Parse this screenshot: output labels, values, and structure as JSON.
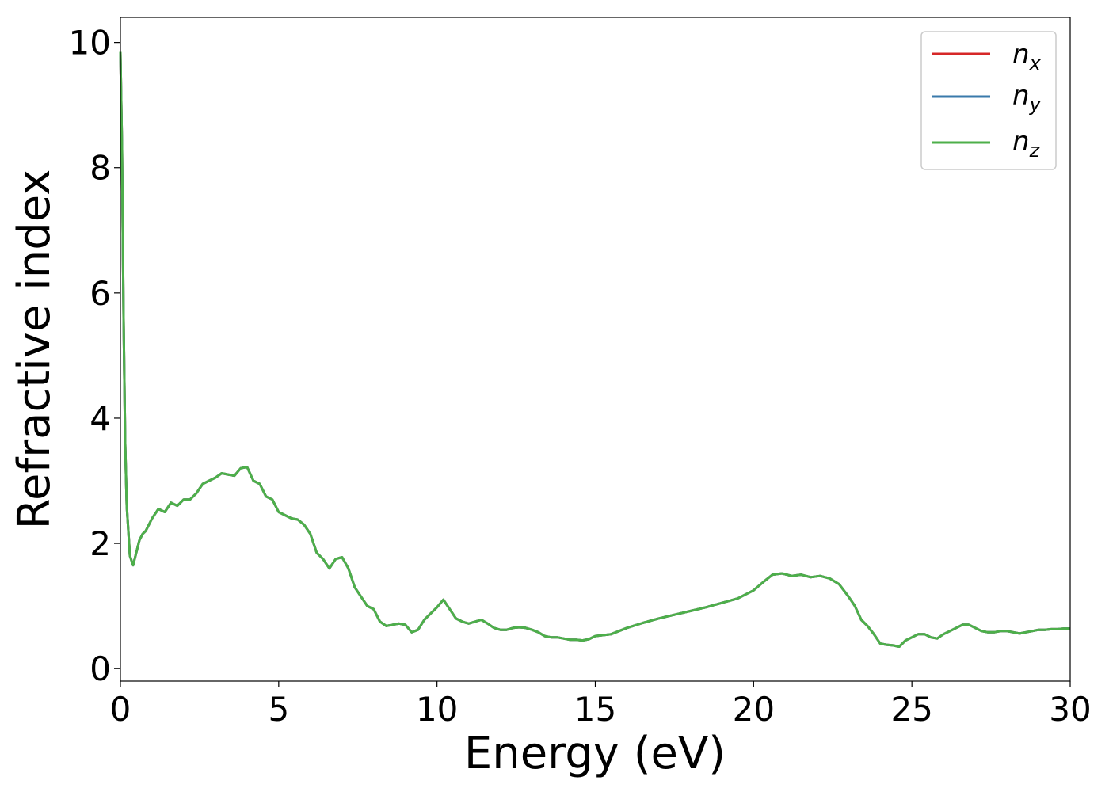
{
  "chart_data": {
    "type": "line",
    "xlabel": "Energy (eV)",
    "ylabel": "Refractive index",
    "xlim": [
      0,
      30
    ],
    "ylim": [
      -0.2,
      10.4
    ],
    "xticks": [
      0,
      5,
      10,
      15,
      20,
      25,
      30
    ],
    "yticks": [
      0,
      2,
      4,
      6,
      8,
      10
    ],
    "xtick_labels": [
      "0",
      "5",
      "10",
      "15",
      "20",
      "25",
      "30"
    ],
    "ytick_labels": [
      "0",
      "2",
      "4",
      "6",
      "8",
      "10"
    ],
    "grid": false,
    "legend_position": "top-right",
    "x": [
      0.0,
      0.05,
      0.1,
      0.15,
      0.2,
      0.3,
      0.4,
      0.5,
      0.6,
      0.7,
      0.8,
      1.0,
      1.2,
      1.4,
      1.6,
      1.8,
      2.0,
      2.2,
      2.4,
      2.6,
      2.8,
      3.0,
      3.2,
      3.4,
      3.6,
      3.8,
      4.0,
      4.2,
      4.4,
      4.6,
      4.8,
      5.0,
      5.2,
      5.4,
      5.6,
      5.8,
      6.0,
      6.2,
      6.4,
      6.6,
      6.8,
      7.0,
      7.2,
      7.4,
      7.6,
      7.8,
      8.0,
      8.2,
      8.4,
      8.6,
      8.8,
      9.0,
      9.2,
      9.4,
      9.6,
      9.8,
      10.0,
      10.2,
      10.4,
      10.6,
      10.8,
      11.0,
      11.2,
      11.4,
      11.6,
      11.8,
      12.0,
      12.2,
      12.4,
      12.6,
      12.8,
      13.0,
      13.2,
      13.4,
      13.6,
      13.8,
      14.0,
      14.2,
      14.4,
      14.6,
      14.8,
      15.0,
      15.5,
      16.0,
      16.5,
      17.0,
      17.5,
      18.0,
      18.5,
      19.0,
      19.5,
      20.0,
      20.3,
      20.6,
      20.9,
      21.2,
      21.5,
      21.8,
      22.1,
      22.4,
      22.7,
      23.0,
      23.2,
      23.4,
      23.6,
      23.8,
      24.0,
      24.2,
      24.4,
      24.6,
      24.8,
      25.0,
      25.2,
      25.4,
      25.6,
      25.8,
      26.0,
      26.2,
      26.4,
      26.6,
      26.8,
      27.0,
      27.2,
      27.4,
      27.6,
      27.8,
      28.0,
      28.2,
      28.4,
      28.6,
      28.8,
      29.0,
      29.2,
      29.4,
      29.6,
      29.8,
      30.0
    ],
    "series": [
      {
        "name": "n_x",
        "color": "#d62728",
        "values": [
          9.85,
          8.3,
          5.6,
          3.6,
          2.6,
          1.8,
          1.65,
          1.85,
          2.05,
          2.15,
          2.2,
          2.4,
          2.55,
          2.5,
          2.65,
          2.6,
          2.7,
          2.7,
          2.8,
          2.95,
          3.0,
          3.05,
          3.12,
          3.1,
          3.08,
          3.2,
          3.22,
          3.0,
          2.95,
          2.75,
          2.7,
          2.5,
          2.45,
          2.4,
          2.38,
          2.3,
          2.15,
          1.85,
          1.75,
          1.6,
          1.75,
          1.78,
          1.6,
          1.3,
          1.15,
          1.0,
          0.95,
          0.75,
          0.68,
          0.7,
          0.72,
          0.7,
          0.58,
          0.62,
          0.78,
          0.88,
          0.98,
          1.1,
          0.95,
          0.8,
          0.75,
          0.72,
          0.75,
          0.78,
          0.72,
          0.65,
          0.62,
          0.62,
          0.65,
          0.66,
          0.65,
          0.62,
          0.58,
          0.52,
          0.5,
          0.5,
          0.48,
          0.46,
          0.46,
          0.45,
          0.47,
          0.52,
          0.55,
          0.65,
          0.73,
          0.8,
          0.86,
          0.92,
          0.98,
          1.05,
          1.12,
          1.25,
          1.38,
          1.5,
          1.52,
          1.48,
          1.5,
          1.46,
          1.48,
          1.44,
          1.35,
          1.15,
          1.0,
          0.78,
          0.68,
          0.55,
          0.4,
          0.38,
          0.37,
          0.35,
          0.45,
          0.5,
          0.55,
          0.55,
          0.5,
          0.48,
          0.55,
          0.6,
          0.65,
          0.7,
          0.7,
          0.65,
          0.6,
          0.58,
          0.58,
          0.6,
          0.6,
          0.58,
          0.56,
          0.58,
          0.6,
          0.62,
          0.62,
          0.63,
          0.63,
          0.64,
          0.64
        ]
      },
      {
        "name": "n_y",
        "color": "#3a7aab",
        "values": [
          9.85,
          8.3,
          5.6,
          3.6,
          2.6,
          1.8,
          1.65,
          1.85,
          2.05,
          2.15,
          2.2,
          2.4,
          2.55,
          2.5,
          2.65,
          2.6,
          2.7,
          2.7,
          2.8,
          2.95,
          3.0,
          3.05,
          3.12,
          3.1,
          3.08,
          3.2,
          3.22,
          3.0,
          2.95,
          2.75,
          2.7,
          2.5,
          2.45,
          2.4,
          2.38,
          2.3,
          2.15,
          1.85,
          1.75,
          1.6,
          1.75,
          1.78,
          1.6,
          1.3,
          1.15,
          1.0,
          0.95,
          0.75,
          0.68,
          0.7,
          0.72,
          0.7,
          0.58,
          0.62,
          0.78,
          0.88,
          0.98,
          1.1,
          0.95,
          0.8,
          0.75,
          0.72,
          0.75,
          0.78,
          0.72,
          0.65,
          0.62,
          0.62,
          0.65,
          0.66,
          0.65,
          0.62,
          0.58,
          0.52,
          0.5,
          0.5,
          0.48,
          0.46,
          0.46,
          0.45,
          0.47,
          0.52,
          0.55,
          0.65,
          0.73,
          0.8,
          0.86,
          0.92,
          0.98,
          1.05,
          1.12,
          1.25,
          1.38,
          1.5,
          1.52,
          1.48,
          1.5,
          1.46,
          1.48,
          1.44,
          1.35,
          1.15,
          1.0,
          0.78,
          0.68,
          0.55,
          0.4,
          0.38,
          0.37,
          0.35,
          0.45,
          0.5,
          0.55,
          0.55,
          0.5,
          0.48,
          0.55,
          0.6,
          0.65,
          0.7,
          0.7,
          0.65,
          0.6,
          0.58,
          0.58,
          0.6,
          0.6,
          0.58,
          0.56,
          0.58,
          0.6,
          0.62,
          0.62,
          0.63,
          0.63,
          0.64,
          0.64
        ]
      },
      {
        "name": "n_z",
        "color": "#4daf4a",
        "values": [
          9.85,
          8.3,
          5.6,
          3.6,
          2.6,
          1.8,
          1.65,
          1.85,
          2.05,
          2.15,
          2.2,
          2.4,
          2.55,
          2.5,
          2.65,
          2.6,
          2.7,
          2.7,
          2.8,
          2.95,
          3.0,
          3.05,
          3.12,
          3.1,
          3.08,
          3.2,
          3.22,
          3.0,
          2.95,
          2.75,
          2.7,
          2.5,
          2.45,
          2.4,
          2.38,
          2.3,
          2.15,
          1.85,
          1.75,
          1.6,
          1.75,
          1.78,
          1.6,
          1.3,
          1.15,
          1.0,
          0.95,
          0.75,
          0.68,
          0.7,
          0.72,
          0.7,
          0.58,
          0.62,
          0.78,
          0.88,
          0.98,
          1.1,
          0.95,
          0.8,
          0.75,
          0.72,
          0.75,
          0.78,
          0.72,
          0.65,
          0.62,
          0.62,
          0.65,
          0.66,
          0.65,
          0.62,
          0.58,
          0.52,
          0.5,
          0.5,
          0.48,
          0.46,
          0.46,
          0.45,
          0.47,
          0.52,
          0.55,
          0.65,
          0.73,
          0.8,
          0.86,
          0.92,
          0.98,
          1.05,
          1.12,
          1.25,
          1.38,
          1.5,
          1.52,
          1.48,
          1.5,
          1.46,
          1.48,
          1.44,
          1.35,
          1.15,
          1.0,
          0.78,
          0.68,
          0.55,
          0.4,
          0.38,
          0.37,
          0.35,
          0.45,
          0.5,
          0.55,
          0.55,
          0.5,
          0.48,
          0.55,
          0.6,
          0.65,
          0.7,
          0.7,
          0.65,
          0.6,
          0.58,
          0.58,
          0.6,
          0.6,
          0.58,
          0.56,
          0.58,
          0.6,
          0.62,
          0.62,
          0.63,
          0.63,
          0.64,
          0.64
        ]
      }
    ],
    "legend": [
      {
        "base": "n",
        "sub": "x",
        "color": "#d62728"
      },
      {
        "base": "n",
        "sub": "y",
        "color": "#3a7aab"
      },
      {
        "base": "n",
        "sub": "z",
        "color": "#4daf4a"
      }
    ]
  }
}
